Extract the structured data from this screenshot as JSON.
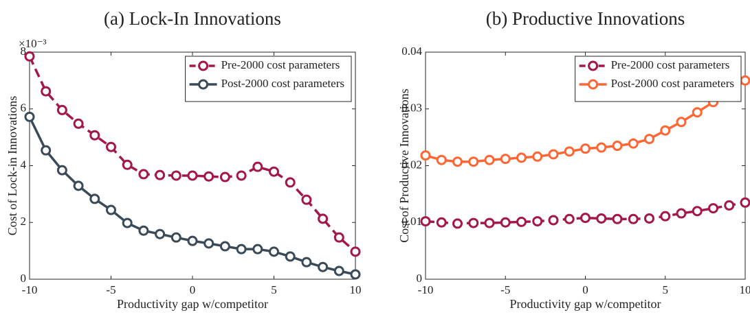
{
  "chart_data": [
    {
      "type": "line",
      "title": "(a) Lock-In Innovations",
      "xlabel": "Productivity gap w/competitor",
      "ylabel": "Cost of Lock-in Innovations",
      "y_multiplier": "×10⁻³",
      "x": [
        -10,
        -9,
        -8,
        -7,
        -6,
        -5,
        -4,
        -3,
        -2,
        -1,
        0,
        1,
        2,
        3,
        4,
        5,
        6,
        7,
        8,
        9,
        10
      ],
      "series": [
        {
          "name": "Pre-2000 cost parameters",
          "color": "#a3174a",
          "line_style": "dashed",
          "values": [
            7.85,
            6.62,
            5.96,
            5.48,
            5.07,
            4.66,
            4.03,
            3.7,
            3.67,
            3.65,
            3.65,
            3.62,
            3.6,
            3.65,
            3.96,
            3.79,
            3.41,
            2.8,
            2.13,
            1.47,
            0.97
          ]
        },
        {
          "name": "Post-2000 cost parameters",
          "color": "#3b4a58",
          "line_style": "solid",
          "values": [
            5.72,
            4.54,
            3.84,
            3.29,
            2.83,
            2.44,
            1.98,
            1.71,
            1.59,
            1.47,
            1.35,
            1.26,
            1.16,
            1.06,
            1.06,
            0.97,
            0.8,
            0.6,
            0.43,
            0.29,
            0.17
          ]
        }
      ],
      "xlim": [
        -10,
        10
      ],
      "ylim": [
        0,
        8
      ],
      "xticks": [
        -10,
        -5,
        0,
        5,
        10
      ],
      "yticks": [
        0,
        2,
        4,
        6,
        8
      ],
      "legend": "upper right"
    },
    {
      "type": "line",
      "title": "(b) Productive Innovations",
      "xlabel": "Productivity gap w/competitor",
      "ylabel": "Cost of Productive Innovations",
      "x": [
        -10,
        -9,
        -8,
        -7,
        -6,
        -5,
        -4,
        -3,
        -2,
        -1,
        0,
        1,
        2,
        3,
        4,
        5,
        6,
        7,
        8,
        9,
        10
      ],
      "series": [
        {
          "name": "Pre-2000 cost parameters",
          "color": "#a3174a",
          "line_style": "dashed",
          "values": [
            0.0102,
            0.01,
            0.0098,
            0.0099,
            0.0099,
            0.01,
            0.0101,
            0.0102,
            0.0104,
            0.0106,
            0.0108,
            0.0107,
            0.0106,
            0.0106,
            0.0107,
            0.0111,
            0.0116,
            0.012,
            0.0125,
            0.013,
            0.0135
          ]
        },
        {
          "name": "Post-2000 cost parameters",
          "color": "#ff6633",
          "line_style": "solid",
          "values": [
            0.0218,
            0.021,
            0.0207,
            0.0207,
            0.021,
            0.0212,
            0.0214,
            0.0216,
            0.022,
            0.0225,
            0.023,
            0.0232,
            0.0235,
            0.0239,
            0.0247,
            0.0262,
            0.0277,
            0.0294,
            0.0312,
            0.033,
            0.035
          ]
        }
      ],
      "xlim": [
        -10,
        10
      ],
      "ylim": [
        0,
        0.04
      ],
      "xticks": [
        -10,
        -5,
        0,
        5,
        10
      ],
      "yticks": [
        0,
        0.01,
        0.02,
        0.03,
        0.04
      ],
      "legend": "upper right"
    }
  ]
}
